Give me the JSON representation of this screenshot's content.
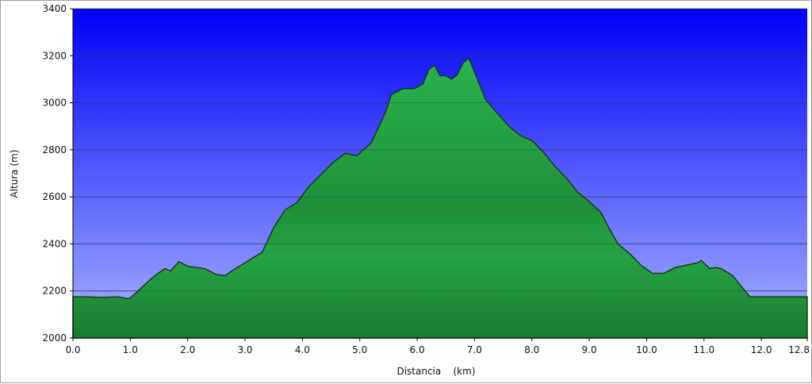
{
  "chart_data": {
    "type": "area",
    "title": "",
    "xlabel": "Distancia    (km)",
    "ylabel": "Altura  (m)",
    "xlim": [
      0,
      12.8
    ],
    "ylim": [
      2000,
      3400
    ],
    "x_ticks": [
      0,
      1,
      2,
      3,
      4,
      5,
      6,
      7,
      8,
      9,
      10,
      11,
      12,
      12.8
    ],
    "x_tick_labels": [
      "0.0",
      "1.0",
      "2.0",
      "3.0",
      "4.0",
      "5.0",
      "6.0",
      "7.0",
      "8.0",
      "9.0",
      "10.0",
      "11.0",
      "12.0",
      "12.8"
    ],
    "y_ticks": [
      2000,
      2200,
      2400,
      2600,
      2800,
      3000,
      3200,
      3400
    ],
    "y_tick_labels": [
      "2000",
      "2200",
      "2400",
      "2600",
      "2800",
      "3000",
      "3200",
      "3400"
    ],
    "grid": true,
    "colors": {
      "sky_top": "#0000f8",
      "sky_bottom": "#a8b4ff",
      "fill_light": "#2bb650",
      "fill_dark": "#1a7a2e",
      "outline": "#1a3a1a"
    },
    "series": [
      {
        "x": [
          0.0,
          0.2,
          0.5,
          0.8,
          0.95,
          1.0,
          1.2,
          1.4,
          1.6,
          1.7,
          1.85,
          2.0,
          2.3,
          2.5,
          2.65,
          2.8,
          3.0,
          3.3,
          3.5,
          3.7,
          3.9,
          4.1,
          4.3,
          4.55,
          4.75,
          4.95,
          5.2,
          5.45,
          5.55,
          5.75,
          5.95,
          6.1,
          6.2,
          6.3,
          6.4,
          6.5,
          6.6,
          6.7,
          6.8,
          6.9,
          6.95,
          7.05,
          7.2,
          7.4,
          7.6,
          7.8,
          8.0,
          8.2,
          8.4,
          8.6,
          8.8,
          9.0,
          9.2,
          9.35,
          9.5,
          9.7,
          9.9,
          10.1,
          10.3,
          10.5,
          10.7,
          10.9,
          10.95,
          11.1,
          11.2,
          11.3,
          11.5,
          11.6,
          11.8,
          12.0,
          12.3,
          12.8
        ],
        "y": [
          2175,
          2175,
          2173,
          2175,
          2168,
          2170,
          2215,
          2260,
          2295,
          2285,
          2325,
          2305,
          2295,
          2270,
          2265,
          2290,
          2320,
          2365,
          2470,
          2545,
          2575,
          2640,
          2690,
          2750,
          2785,
          2775,
          2830,
          2960,
          3035,
          3060,
          3060,
          3080,
          3140,
          3160,
          3115,
          3115,
          3100,
          3120,
          3170,
          3190,
          3160,
          3100,
          3010,
          2955,
          2900,
          2860,
          2840,
          2790,
          2730,
          2680,
          2620,
          2580,
          2535,
          2465,
          2400,
          2360,
          2310,
          2275,
          2275,
          2300,
          2310,
          2320,
          2330,
          2295,
          2300,
          2295,
          2265,
          2235,
          2175,
          2175,
          2175,
          2175
        ]
      }
    ]
  }
}
